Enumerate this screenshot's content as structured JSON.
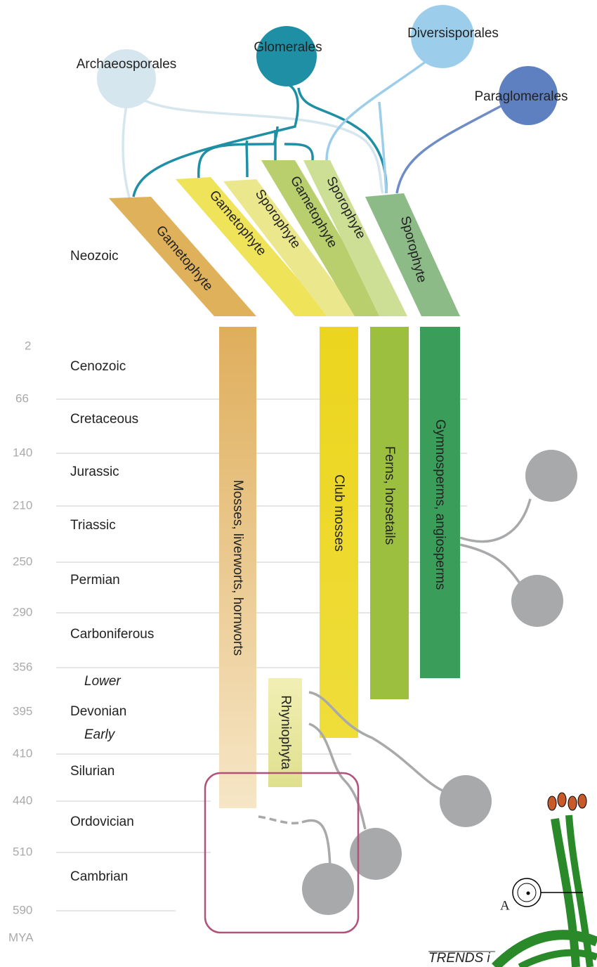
{
  "clades": [
    "Archaeosporales",
    "Glomerales",
    "Diversisporales",
    "Paraglomerales"
  ],
  "era_label": "Neozoic",
  "generations": [
    "Gametophyte",
    "Gametophyte",
    "Sporophyte",
    "Gametophyte",
    "Sporophyte",
    "Sporophyte"
  ],
  "time_scale": {
    "ticks": [
      "2",
      "66",
      "140",
      "210",
      "250",
      "290",
      "356",
      "395",
      "410",
      "440",
      "510",
      "590"
    ],
    "unit": "MYA",
    "periods": [
      "Cenozoic",
      "Cretaceous",
      "Jurassic",
      "Triassic",
      "Permian",
      "Carboniferous",
      "Devonian",
      "Silurian",
      "Ordovician",
      "Cambrian"
    ],
    "subdivisions": [
      "Lower",
      "Early"
    ]
  },
  "plant_groups": [
    "Mosses, liverworts, hornworts",
    "Club mosses",
    "Ferns, horsetails",
    "Gymnosperms, angiosperms",
    "Rhyniophyta"
  ],
  "figure_label": "A",
  "source": "TRENDS i"
}
